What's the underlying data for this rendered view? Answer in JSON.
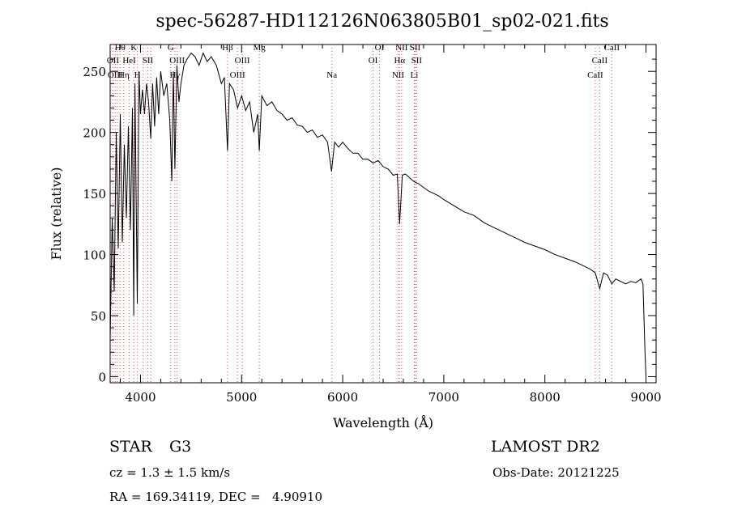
{
  "chart_data": {
    "type": "line",
    "title": "spec-56287-HD112126N063805B01_sp02-021.fits",
    "xlabel": "Wavelength (Å)",
    "ylabel": "Flux (relative)",
    "xlim": [
      3700,
      9100
    ],
    "ylim": [
      -5,
      272
    ],
    "xticks": [
      4000,
      5000,
      6000,
      7000,
      8000,
      9000
    ],
    "yticks": [
      0,
      50,
      100,
      150,
      200,
      250
    ],
    "series": [
      {
        "color": "#000000",
        "x": [
          3700,
          3720,
          3740,
          3760,
          3780,
          3800,
          3820,
          3840,
          3860,
          3880,
          3900,
          3920,
          3933,
          3945,
          3968,
          3985,
          4000,
          4020,
          4040,
          4060,
          4080,
          4101,
          4120,
          4140,
          4160,
          4180,
          4200,
          4230,
          4260,
          4290,
          4310,
          4325,
          4340,
          4360,
          4380,
          4400,
          4430,
          4460,
          4500,
          4540,
          4580,
          4620,
          4660,
          4700,
          4750,
          4800,
          4830,
          4861,
          4880,
          4920,
          4960,
          5000,
          5040,
          5080,
          5120,
          5160,
          5175,
          5200,
          5250,
          5300,
          5350,
          5400,
          5450,
          5500,
          5550,
          5600,
          5650,
          5700,
          5750,
          5800,
          5850,
          5890,
          5920,
          5960,
          6000,
          6050,
          6100,
          6150,
          6200,
          6250,
          6300,
          6350,
          6400,
          6450,
          6500,
          6540,
          6563,
          6590,
          6620,
          6660,
          6700,
          6750,
          6800,
          6850,
          6900,
          6950,
          7000,
          7100,
          7200,
          7300,
          7400,
          7500,
          7600,
          7700,
          7800,
          7900,
          8000,
          8100,
          8200,
          8300,
          8400,
          8450,
          8498,
          8542,
          8580,
          8620,
          8662,
          8700,
          8750,
          8800,
          8850,
          8900,
          8950,
          8970,
          8990,
          9000
        ],
        "y": [
          30,
          130,
          70,
          200,
          105,
          215,
          110,
          190,
          130,
          205,
          120,
          220,
          50,
          240,
          60,
          250,
          215,
          235,
          215,
          240,
          225,
          195,
          240,
          205,
          245,
          215,
          250,
          230,
          240,
          210,
          160,
          250,
          170,
          255,
          225,
          240,
          255,
          260,
          265,
          262,
          255,
          265,
          258,
          262,
          255,
          240,
          245,
          185,
          240,
          235,
          220,
          230,
          218,
          225,
          200,
          215,
          185,
          230,
          222,
          225,
          218,
          215,
          210,
          212,
          206,
          205,
          200,
          202,
          196,
          198,
          192,
          168,
          192,
          188,
          192,
          187,
          183,
          183,
          178,
          178,
          175,
          177,
          172,
          170,
          165,
          166,
          125,
          165,
          166,
          163,
          160,
          158,
          155,
          152,
          150,
          148,
          145,
          140,
          135,
          132,
          126,
          122,
          118,
          114,
          110,
          107,
          104,
          100,
          97,
          94,
          90,
          88,
          85,
          72,
          85,
          83,
          76,
          80,
          78,
          76,
          78,
          77,
          80,
          76,
          20,
          0
        ]
      }
    ],
    "vlines": [
      3727,
      3750,
      3771,
      3798,
      3835,
      3889,
      3934,
      3969,
      4026,
      4072,
      4102,
      4300,
      4340,
      4363,
      4861,
      4959,
      5007,
      5175,
      5893,
      6300,
      6363,
      6548,
      6563,
      6583,
      6708,
      6716,
      6731,
      8498,
      8542,
      8662
    ],
    "line_labels": [
      {
        "text": "Hθ",
        "x": 3798,
        "row": 1
      },
      {
        "text": "K",
        "x": 3934,
        "row": 1
      },
      {
        "text": "G",
        "x": 4300,
        "row": 1
      },
      {
        "text": "Hβ",
        "x": 4861,
        "row": 1
      },
      {
        "text": "Mg",
        "x": 5175,
        "row": 1
      },
      {
        "text": "OI",
        "x": 6363,
        "row": 1
      },
      {
        "text": "NII",
        "x": 6583,
        "row": 1
      },
      {
        "text": "SII",
        "x": 6716,
        "row": 1
      },
      {
        "text": "CaII",
        "x": 8662,
        "row": 1
      },
      {
        "text": "OII",
        "x": 3727,
        "row": 2
      },
      {
        "text": "HeI",
        "x": 3889,
        "row": 2
      },
      {
        "text": "SII",
        "x": 4072,
        "row": 2
      },
      {
        "text": "OIII",
        "x": 4363,
        "row": 2
      },
      {
        "text": "OIII",
        "x": 5007,
        "row": 2
      },
      {
        "text": "OI",
        "x": 6300,
        "row": 2
      },
      {
        "text": "Hα",
        "x": 6563,
        "row": 2
      },
      {
        "text": "SII",
        "x": 6731,
        "row": 2
      },
      {
        "text": "CaII",
        "x": 8542,
        "row": 2
      },
      {
        "text": "OIII",
        "x": 3750,
        "row": 3
      },
      {
        "text": "Hη",
        "x": 3835,
        "row": 3
      },
      {
        "text": "H",
        "x": 3969,
        "row": 3
      },
      {
        "text": "Hγ",
        "x": 4340,
        "row": 3
      },
      {
        "text": "OIII",
        "x": 4959,
        "row": 3
      },
      {
        "text": "Na",
        "x": 5893,
        "row": 3
      },
      {
        "text": "NII",
        "x": 6548,
        "row": 3
      },
      {
        "text": "Li",
        "x": 6708,
        "row": 3
      },
      {
        "text": "CaII",
        "x": 8498,
        "row": 3
      }
    ],
    "vline_color": "#e05050",
    "grid": false
  },
  "info": {
    "class_label": "STAR",
    "subclass": "G3",
    "survey": "LAMOST DR2",
    "cz": "cz = 1.3 ± 1.5 km/s",
    "obs_date": "Obs-Date: 20121225",
    "radec": "RA = 169.34119, DEC =   4.90910"
  }
}
